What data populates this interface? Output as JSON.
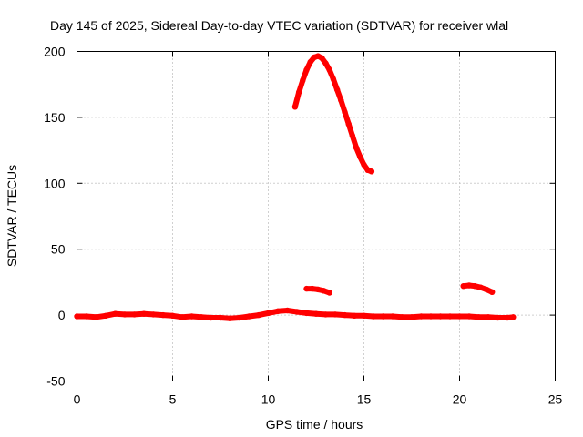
{
  "chart_data": {
    "type": "line",
    "title": "Day 145 of 2025, Sidereal Day-to-day VTEC variation (SDTVAR) for receiver wlal",
    "xlabel": "GPS time / hours",
    "ylabel": "SDTVAR / TECUs",
    "xlim": [
      0,
      25
    ],
    "ylim": [
      -50,
      200
    ],
    "xticks": [
      "0",
      "5",
      "10",
      "15",
      "20",
      "25"
    ],
    "yticks": [
      "-50",
      "0",
      "50",
      "100",
      "150",
      "200"
    ],
    "grid": true,
    "legend": "none",
    "color": "#ff0000",
    "series": [
      {
        "x": [
          0,
          0.5,
          1,
          1.5,
          2,
          2.5,
          3,
          3.5,
          4,
          4.5,
          5,
          5.5,
          6,
          6.5,
          7,
          7.5,
          8,
          8.5,
          9,
          9.5,
          10,
          10.5,
          11,
          11.5,
          12,
          12.5,
          13,
          13.5,
          14,
          14.5,
          15,
          15.5,
          16,
          16.5,
          17,
          17.5,
          18,
          18.5,
          19,
          19.5,
          20,
          20.5,
          21,
          21.5,
          22,
          22.5,
          22.8
        ],
        "y": [
          -1,
          -1,
          -1.5,
          -0.5,
          1,
          0.5,
          0.5,
          1,
          0.5,
          0,
          -0.5,
          -1.5,
          -1,
          -1.5,
          -2,
          -2,
          -2.5,
          -2,
          -1,
          0,
          1.5,
          3,
          3.5,
          2.5,
          1.5,
          1,
          0.5,
          0.5,
          0,
          -0.5,
          -0.5,
          -1,
          -1,
          -1,
          -1.5,
          -1.5,
          -1,
          -1,
          -1,
          -1,
          -1,
          -1,
          -1.5,
          -1.5,
          -2,
          -2,
          -1.5
        ]
      },
      {
        "x": [
          11.4,
          11.6,
          11.8,
          12.0,
          12.2,
          12.4,
          12.6,
          12.8,
          13.0,
          13.2,
          13.4,
          13.6,
          13.8,
          14.0,
          14.2,
          14.4,
          14.6,
          14.8,
          15.0,
          15.2,
          15.4
        ],
        "y": [
          158,
          169,
          178,
          186,
          192,
          195.5,
          196.5,
          195,
          191,
          186,
          179,
          171,
          163,
          154,
          145,
          136,
          127,
          120,
          114,
          110,
          109
        ]
      },
      {
        "x": [
          12.0,
          12.3,
          12.6,
          12.9,
          13.2
        ],
        "y": [
          20,
          20,
          19.5,
          18.5,
          17
        ]
      },
      {
        "x": [
          20.2,
          20.5,
          20.8,
          21.1,
          21.4,
          21.7
        ],
        "y": [
          22,
          22.5,
          22,
          21,
          19.5,
          17.5
        ]
      }
    ]
  }
}
